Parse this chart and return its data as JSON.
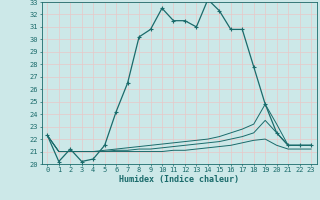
{
  "xlabel": "Humidex (Indice chaleur)",
  "ylabel": "",
  "xlim": [
    -0.5,
    23.5
  ],
  "ylim": [
    20,
    33
  ],
  "xticks": [
    0,
    1,
    2,
    3,
    4,
    5,
    6,
    7,
    8,
    9,
    10,
    11,
    12,
    13,
    14,
    15,
    16,
    17,
    18,
    19,
    20,
    21,
    22,
    23
  ],
  "yticks": [
    20,
    21,
    22,
    23,
    24,
    25,
    26,
    27,
    28,
    29,
    30,
    31,
    32,
    33
  ],
  "bg_color": "#cce8e8",
  "line_color": "#1a6b6b",
  "grid_color": "#e8c8c8",
  "curves": {
    "main": {
      "x": [
        0,
        1,
        2,
        3,
        4,
        5,
        6,
        7,
        8,
        9,
        10,
        11,
        12,
        13,
        14,
        15,
        16,
        17,
        18,
        19,
        20,
        21,
        22,
        23
      ],
      "y": [
        22.3,
        20.2,
        21.2,
        20.2,
        20.4,
        21.5,
        24.2,
        26.5,
        30.2,
        30.8,
        32.5,
        31.5,
        31.5,
        31.0,
        33.2,
        32.3,
        30.8,
        30.8,
        27.8,
        24.8,
        22.5,
        21.5,
        21.5,
        21.5
      ]
    },
    "line2": {
      "x": [
        0,
        1,
        2,
        3,
        4,
        5,
        6,
        7,
        8,
        9,
        10,
        11,
        12,
        13,
        14,
        15,
        16,
        17,
        18,
        19,
        20,
        21,
        22,
        23
      ],
      "y": [
        22.3,
        21.0,
        21.0,
        21.0,
        21.0,
        21.1,
        21.2,
        21.3,
        21.4,
        21.5,
        21.6,
        21.7,
        21.8,
        21.9,
        22.0,
        22.2,
        22.5,
        22.8,
        23.2,
        24.8,
        23.2,
        21.5,
        21.5,
        21.5
      ]
    },
    "line3": {
      "x": [
        0,
        1,
        2,
        3,
        4,
        5,
        6,
        7,
        8,
        9,
        10,
        11,
        12,
        13,
        14,
        15,
        16,
        17,
        18,
        19,
        20,
        21,
        22,
        23
      ],
      "y": [
        22.3,
        21.0,
        21.0,
        21.0,
        21.0,
        21.0,
        21.1,
        21.1,
        21.2,
        21.2,
        21.3,
        21.4,
        21.5,
        21.6,
        21.7,
        21.8,
        22.0,
        22.2,
        22.5,
        23.5,
        22.5,
        21.5,
        21.5,
        21.5
      ]
    },
    "line4": {
      "x": [
        0,
        1,
        2,
        3,
        4,
        5,
        6,
        7,
        8,
        9,
        10,
        11,
        12,
        13,
        14,
        15,
        16,
        17,
        18,
        19,
        20,
        21,
        22,
        23
      ],
      "y": [
        22.3,
        21.0,
        21.0,
        21.0,
        21.0,
        21.0,
        21.0,
        21.0,
        21.0,
        21.0,
        21.0,
        21.1,
        21.1,
        21.2,
        21.3,
        21.4,
        21.5,
        21.7,
        21.9,
        22.0,
        21.5,
        21.2,
        21.2,
        21.2
      ]
    }
  }
}
